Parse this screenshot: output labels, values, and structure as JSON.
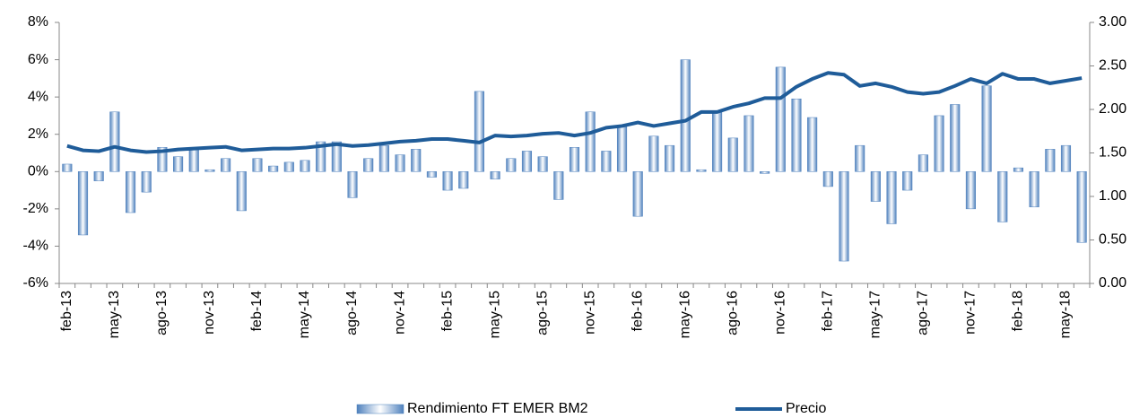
{
  "chart_data": {
    "type": "bar-line",
    "categories": [
      "feb-13",
      null,
      null,
      "may-13",
      null,
      null,
      "ago-13",
      null,
      null,
      "nov-13",
      null,
      null,
      "feb-14",
      null,
      null,
      "may-14",
      null,
      null,
      "ago-14",
      null,
      null,
      "nov-14",
      null,
      null,
      "feb-15",
      null,
      null,
      "may-15",
      null,
      null,
      "ago-15",
      null,
      null,
      "nov-15",
      null,
      null,
      "feb-16",
      null,
      null,
      "may-16",
      null,
      null,
      "ago-16",
      null,
      null,
      "nov-16",
      null,
      null,
      "feb-17",
      null,
      null,
      "may-17",
      null,
      null,
      "ago-17",
      null,
      null,
      "nov-17",
      null,
      null,
      "feb-18",
      null,
      null,
      "may-18",
      null
    ],
    "series": [
      {
        "name": "Rendimiento FT EMER BM2",
        "color": "#4f81bd",
        "kind": "bar",
        "axis": "y",
        "values": [
          0.4,
          -3.4,
          -0.5,
          3.2,
          -2.2,
          -1.1,
          1.3,
          0.8,
          1.2,
          0.1,
          0.7,
          -2.1,
          0.7,
          0.3,
          0.5,
          0.6,
          1.6,
          1.6,
          -1.4,
          0.7,
          1.4,
          0.9,
          1.2,
          -0.3,
          -1.0,
          -0.9,
          4.3,
          -0.4,
          0.7,
          1.1,
          0.8,
          -1.5,
          1.3,
          3.2,
          1.1,
          2.5,
          -2.4,
          1.9,
          1.4,
          6.0,
          0.1,
          3.2,
          1.8,
          3.0,
          -0.1,
          5.6,
          3.9,
          2.9,
          -0.8,
          -4.8,
          1.4,
          -1.6,
          -2.8,
          -1.0,
          0.9,
          3.0,
          3.6,
          -2.0,
          4.6,
          -2.7,
          0.2,
          -1.9,
          1.2,
          1.4,
          -3.8
        ]
      },
      {
        "name": "Precio",
        "color": "#1f5c99",
        "kind": "line",
        "axis": "y2",
        "values": [
          1.58,
          1.53,
          1.52,
          1.57,
          1.53,
          1.51,
          1.52,
          1.54,
          1.55,
          1.56,
          1.57,
          1.53,
          1.54,
          1.55,
          1.55,
          1.56,
          1.58,
          1.6,
          1.58,
          1.59,
          1.61,
          1.63,
          1.64,
          1.66,
          1.66,
          1.64,
          1.62,
          1.7,
          1.69,
          1.7,
          1.72,
          1.73,
          1.7,
          1.73,
          1.79,
          1.81,
          1.85,
          1.81,
          1.84,
          1.87,
          1.97,
          1.97,
          2.03,
          2.07,
          2.13,
          2.13,
          2.26,
          2.35,
          2.42,
          2.4,
          2.27,
          2.3,
          2.26,
          2.2,
          2.18,
          2.2,
          2.27,
          2.35,
          2.3,
          2.41,
          2.35,
          2.35,
          2.3,
          2.33,
          2.36
        ]
      }
    ],
    "ylim": [
      -6,
      8
    ],
    "yticks": [
      {
        "value": -6,
        "label": "-6%"
      },
      {
        "value": -4,
        "label": "-4%"
      },
      {
        "value": -2,
        "label": "-2%"
      },
      {
        "value": 0,
        "label": "0%"
      },
      {
        "value": 2,
        "label": "2%"
      },
      {
        "value": 4,
        "label": "4%"
      },
      {
        "value": 6,
        "label": "6%"
      },
      {
        "value": 8,
        "label": "8%"
      }
    ],
    "y2lim": [
      0,
      3
    ],
    "y2ticks": [
      {
        "value": 0,
        "label": "0.00"
      },
      {
        "value": 0.5,
        "label": "0.50"
      },
      {
        "value": 1,
        "label": "1.00"
      },
      {
        "value": 1.5,
        "label": "1.50"
      },
      {
        "value": 2,
        "label": "2.00"
      },
      {
        "value": 2.5,
        "label": "2.50"
      },
      {
        "value": 3,
        "label": "3.00"
      }
    ],
    "grid": false,
    "legend": "bottom"
  }
}
